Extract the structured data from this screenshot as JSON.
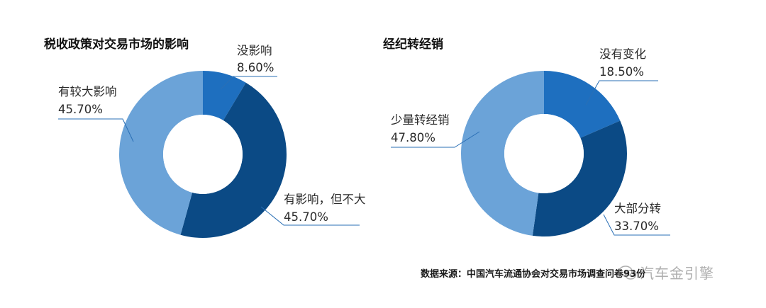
{
  "chart_data": [
    {
      "type": "donut",
      "title": "税收政策对交易市场的影响",
      "slices": [
        {
          "name": "没影响",
          "value": 8.6,
          "label_value": "8.60%",
          "color": "#1e6fbf"
        },
        {
          "name": "有影响，但不大",
          "value": 45.7,
          "label_value": "45.70%",
          "color": "#0b4a85"
        },
        {
          "name": "有较大影响",
          "value": 45.7,
          "label_value": "45.70%",
          "color": "#6ba3d8"
        }
      ],
      "display_names": [
        "没影响",
        "有影响，但不大",
        "有较大影响"
      ]
    },
    {
      "type": "donut",
      "title": "经纪转经销",
      "slices": [
        {
          "name": "没有变化",
          "value": 18.5,
          "label_value": "18.50%",
          "color": "#1e6fbf"
        },
        {
          "name": "大部分转",
          "value": 33.7,
          "label_value": "33.70%",
          "color": "#0b4a85"
        },
        {
          "name": "少量转经销",
          "value": 47.8,
          "label_value": "47.80%",
          "color": "#6ba3d8"
        }
      ]
    }
  ],
  "source": "数据来源：中国汽车流通协会对交易市场调查问卷93份",
  "watermark": "汽车金引擎"
}
